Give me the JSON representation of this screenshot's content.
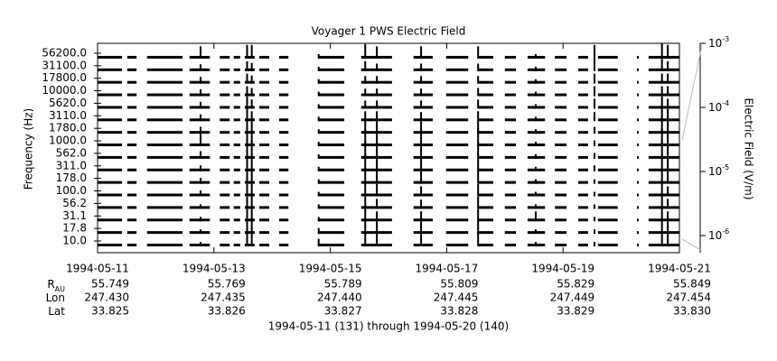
{
  "chart_data": {
    "type": "stack",
    "title": "Voyager 1 PWS Electric Field",
    "ylabel": "Frequency (Hz)",
    "y2label": "Electric Field (V/m)",
    "channels": [
      "10.0",
      "17.8",
      "31.1",
      "56.2",
      "100.0",
      "178.0",
      "311.0",
      "562.0",
      "1000.0",
      "1780.0",
      "3110.0",
      "5620.0",
      "10000.0",
      "17800.0",
      "31100.0",
      "56200.0"
    ],
    "xlim": [
      0,
      10
    ],
    "xticks": [
      {
        "value": 0,
        "label": "1994-05-11"
      },
      {
        "value": 2,
        "label": "1994-05-13"
      },
      {
        "value": 4,
        "label": "1994-05-15"
      },
      {
        "value": 6,
        "label": "1994-05-17"
      },
      {
        "value": 8,
        "label": "1994-05-19"
      },
      {
        "value": 10,
        "label": "1994-05-21"
      }
    ],
    "y2lim": [
      5.4e-07,
      0.001
    ],
    "y2ticks": [
      {
        "value": 0.001,
        "label": "10",
        "exp": "-3"
      },
      {
        "value": 0.0001,
        "label": "10",
        "exp": "-4"
      },
      {
        "value": 1e-05,
        "label": "10",
        "exp": "-5"
      },
      {
        "value": 1e-06,
        "label": "10",
        "exp": "-6"
      }
    ],
    "color": "#000000",
    "coverage": [
      [
        0,
        0.42
      ],
      [
        0.51,
        0.67
      ],
      [
        0.85,
        1.46
      ],
      [
        1.58,
        1.93
      ],
      [
        2.1,
        2.27
      ],
      [
        2.34,
        2.45
      ],
      [
        2.53,
        2.7
      ],
      [
        2.78,
        2.95
      ],
      [
        3.12,
        3.28
      ],
      [
        3.79,
        4.24
      ],
      [
        4.53,
        5.06
      ],
      [
        5.43,
        5.76
      ],
      [
        5.99,
        6.37
      ],
      [
        6.54,
        6.8
      ],
      [
        7.0,
        7.19
      ],
      [
        7.39,
        7.69
      ],
      [
        7.86,
        8.06
      ],
      [
        8.26,
        8.43
      ],
      [
        8.6,
        8.94
      ],
      [
        9.27,
        9.3
      ],
      [
        9.47,
        10
      ]
    ],
    "events": [
      {
        "x": 1.77,
        "values": [
          2e-06,
          2e-06,
          2e-06,
          2e-06,
          3e-06,
          3e-06,
          3e-06,
          5e-06,
          3e-05,
          4e-06,
          4e-06,
          4e-06,
          4e-06,
          4e-06,
          4e-06,
          2e-05
        ]
      },
      {
        "x": 2.57,
        "values": [
          3e-05,
          3e-05,
          2e-05,
          2e-05,
          2e-05,
          3e-05,
          6e-05,
          0.0001,
          0.0001,
          5e-05,
          3e-05,
          2e-05,
          1e-05,
          1e-05,
          1e-05,
          3e-05
        ]
      },
      {
        "x": 2.65,
        "values": [
          5e-05,
          4e-05,
          3e-05,
          3e-05,
          3e-05,
          4e-05,
          8e-05,
          0.0001,
          6e-05,
          2e-05,
          1e-05,
          8e-06,
          6e-06,
          6e-06,
          6e-06,
          3e-05
        ]
      },
      {
        "x": 3.8,
        "values": [
          5e-06,
          3e-06,
          2e-06,
          2e-06,
          2e-06,
          2e-06,
          2e-06,
          2e-06,
          2e-06,
          2e-06,
          2e-06,
          2e-06,
          2e-06,
          2e-06,
          2e-06,
          2e-06
        ]
      },
      {
        "x": 4.6,
        "values": [
          4e-05,
          3e-05,
          2e-05,
          2e-05,
          3e-05,
          6e-05,
          0.0001,
          0.0001,
          8e-05,
          3e-05,
          1e-05,
          6e-06,
          5e-06,
          5e-06,
          1e-05,
          4e-05
        ]
      },
      {
        "x": 4.8,
        "values": [
          3e-05,
          2e-05,
          1e-05,
          1e-05,
          2e-05,
          4e-05,
          8e-05,
          6e-05,
          4e-05,
          2e-05,
          1e-05,
          6e-06,
          5e-06,
          5e-06,
          5e-06,
          2e-05
        ]
      },
      {
        "x": 5.56,
        "values": [
          3e-05,
          2e-05,
          1e-05,
          8e-06,
          1e-05,
          2e-05,
          3e-05,
          4e-05,
          5e-05,
          2e-05,
          8e-06,
          6e-06,
          5e-06,
          5e-06,
          5e-06,
          2e-05
        ]
      },
      {
        "x": 6.54,
        "values": [
          5e-05,
          3e-05,
          2e-05,
          2e-05,
          2e-05,
          3e-05,
          5e-05,
          8e-05,
          0.0001,
          3e-05,
          1e-05,
          8e-06,
          6e-06,
          5e-06,
          5e-06,
          2e-05
        ]
      },
      {
        "x": 7.53,
        "values": [
          2e-06,
          2e-06,
          1e-05,
          2e-06,
          2e-06,
          2e-06,
          2e-06,
          2e-06,
          2e-06,
          2e-06,
          2e-06,
          2e-06,
          2e-06,
          2e-06,
          2e-06,
          2e-06
        ]
      },
      {
        "x": 8.54,
        "values": [
          2e-06,
          2e-06,
          2e-06,
          2e-06,
          2e-06,
          2e-06,
          3e-06,
          3e-06,
          3e-06,
          4e-06,
          8e-06,
          1e-05,
          1e-05,
          1e-05,
          2e-05,
          3e-05
        ]
      },
      {
        "x": 9.7,
        "values": [
          5e-05,
          4e-05,
          3e-05,
          3e-05,
          3e-05,
          5e-05,
          8e-05,
          0.0001,
          0.0001,
          6e-05,
          3e-05,
          2e-05,
          1e-05,
          1e-05,
          2e-05,
          5e-05
        ]
      },
      {
        "x": 9.8,
        "values": [
          3e-05,
          2e-05,
          1e-05,
          1e-05,
          1e-05,
          2e-05,
          3e-05,
          5e-05,
          4e-05,
          3e-05,
          2e-05,
          1e-05,
          1e-05,
          1e-05,
          1e-05,
          3e-05
        ]
      }
    ],
    "ephemeris": [
      {
        "label": "R",
        "sub": "AU",
        "values": [
          "55.749",
          "55.769",
          "55.789",
          "55.809",
          "55.829",
          "55.849"
        ]
      },
      {
        "label": "Lon",
        "values": [
          "247.430",
          "247.435",
          "247.440",
          "247.445",
          "247.449",
          "247.454"
        ]
      },
      {
        "label": "Lat",
        "values": [
          "33.825",
          "33.826",
          "33.827",
          "33.828",
          "33.829",
          "33.830"
        ]
      }
    ],
    "footer": "1994-05-11 (131) through 1994-05-20 (140)"
  }
}
